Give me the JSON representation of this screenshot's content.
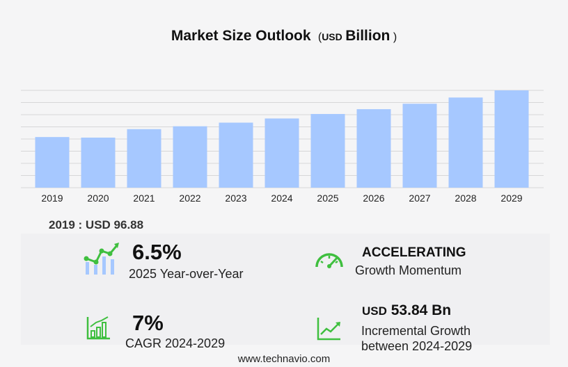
{
  "header": {
    "title": "Market Size Outlook",
    "unit_open": "(",
    "unit_currency": "USD",
    "unit_scale": "Billion",
    "unit_close": ")"
  },
  "colors": {
    "bar": "#a6c8ff",
    "grid": "#d6d6d8",
    "accent_green": "#3fbf3f",
    "icon_blue": "#a6c8ff"
  },
  "chart_data": {
    "type": "bar",
    "title": "Market Size Outlook (USD Billion)",
    "xlabel": "",
    "ylabel": "",
    "categories": [
      "2019",
      "2020",
      "2021",
      "2022",
      "2023",
      "2024",
      "2025",
      "2026",
      "2027",
      "2028",
      "2029"
    ],
    "values": [
      96.88,
      95.8,
      112.0,
      117.5,
      124.4,
      132.4,
      141.0,
      150.2,
      160.6,
      172.5,
      186.2
    ],
    "ylim": [
      0,
      186.2
    ],
    "grid": true,
    "y_tick_labels_shown": false
  },
  "baseline": {
    "label": "2019 : USD  96.88"
  },
  "stats": {
    "yoy": {
      "value": "6.5%",
      "label": "2025 Year-over-Year",
      "icon": "growth-chart-icon"
    },
    "momentum": {
      "value": "ACCELERATING",
      "label": "Growth Momentum",
      "icon": "speedometer-icon"
    },
    "cagr": {
      "value": "7%",
      "label": "CAGR 2024-2029",
      "icon": "bar-growth-icon"
    },
    "incremental": {
      "currency": "USD",
      "value": "53.84 Bn",
      "label_line1": "Incremental Growth",
      "label_line2": "between 2024-2029",
      "icon": "trend-line-icon"
    }
  },
  "footer": {
    "url": "www.technavio.com"
  }
}
